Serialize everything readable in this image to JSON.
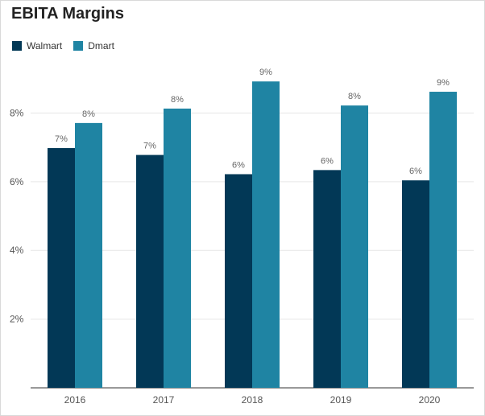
{
  "chart_data": {
    "type": "bar",
    "title": "EBITA Margins",
    "categories": [
      "2016",
      "2017",
      "2018",
      "2019",
      "2020"
    ],
    "series": [
      {
        "name": "Walmart",
        "color": "#023856",
        "values": [
          6.98,
          6.78,
          6.22,
          6.34,
          6.04
        ],
        "labels": [
          "7%",
          "7%",
          "6%",
          "6%",
          "6%"
        ]
      },
      {
        "name": "Dmart",
        "color": "#1f84a3",
        "values": [
          7.71,
          8.13,
          8.92,
          8.22,
          8.62
        ],
        "labels": [
          "8%",
          "8%",
          "9%",
          "8%",
          "9%"
        ]
      }
    ],
    "ylim": [
      0,
      9.3
    ],
    "yticks": [
      2,
      4,
      6,
      8
    ],
    "ytick_labels": [
      "2%",
      "4%",
      "6%",
      "8%"
    ],
    "grid": true,
    "legend_position": "top-left"
  }
}
